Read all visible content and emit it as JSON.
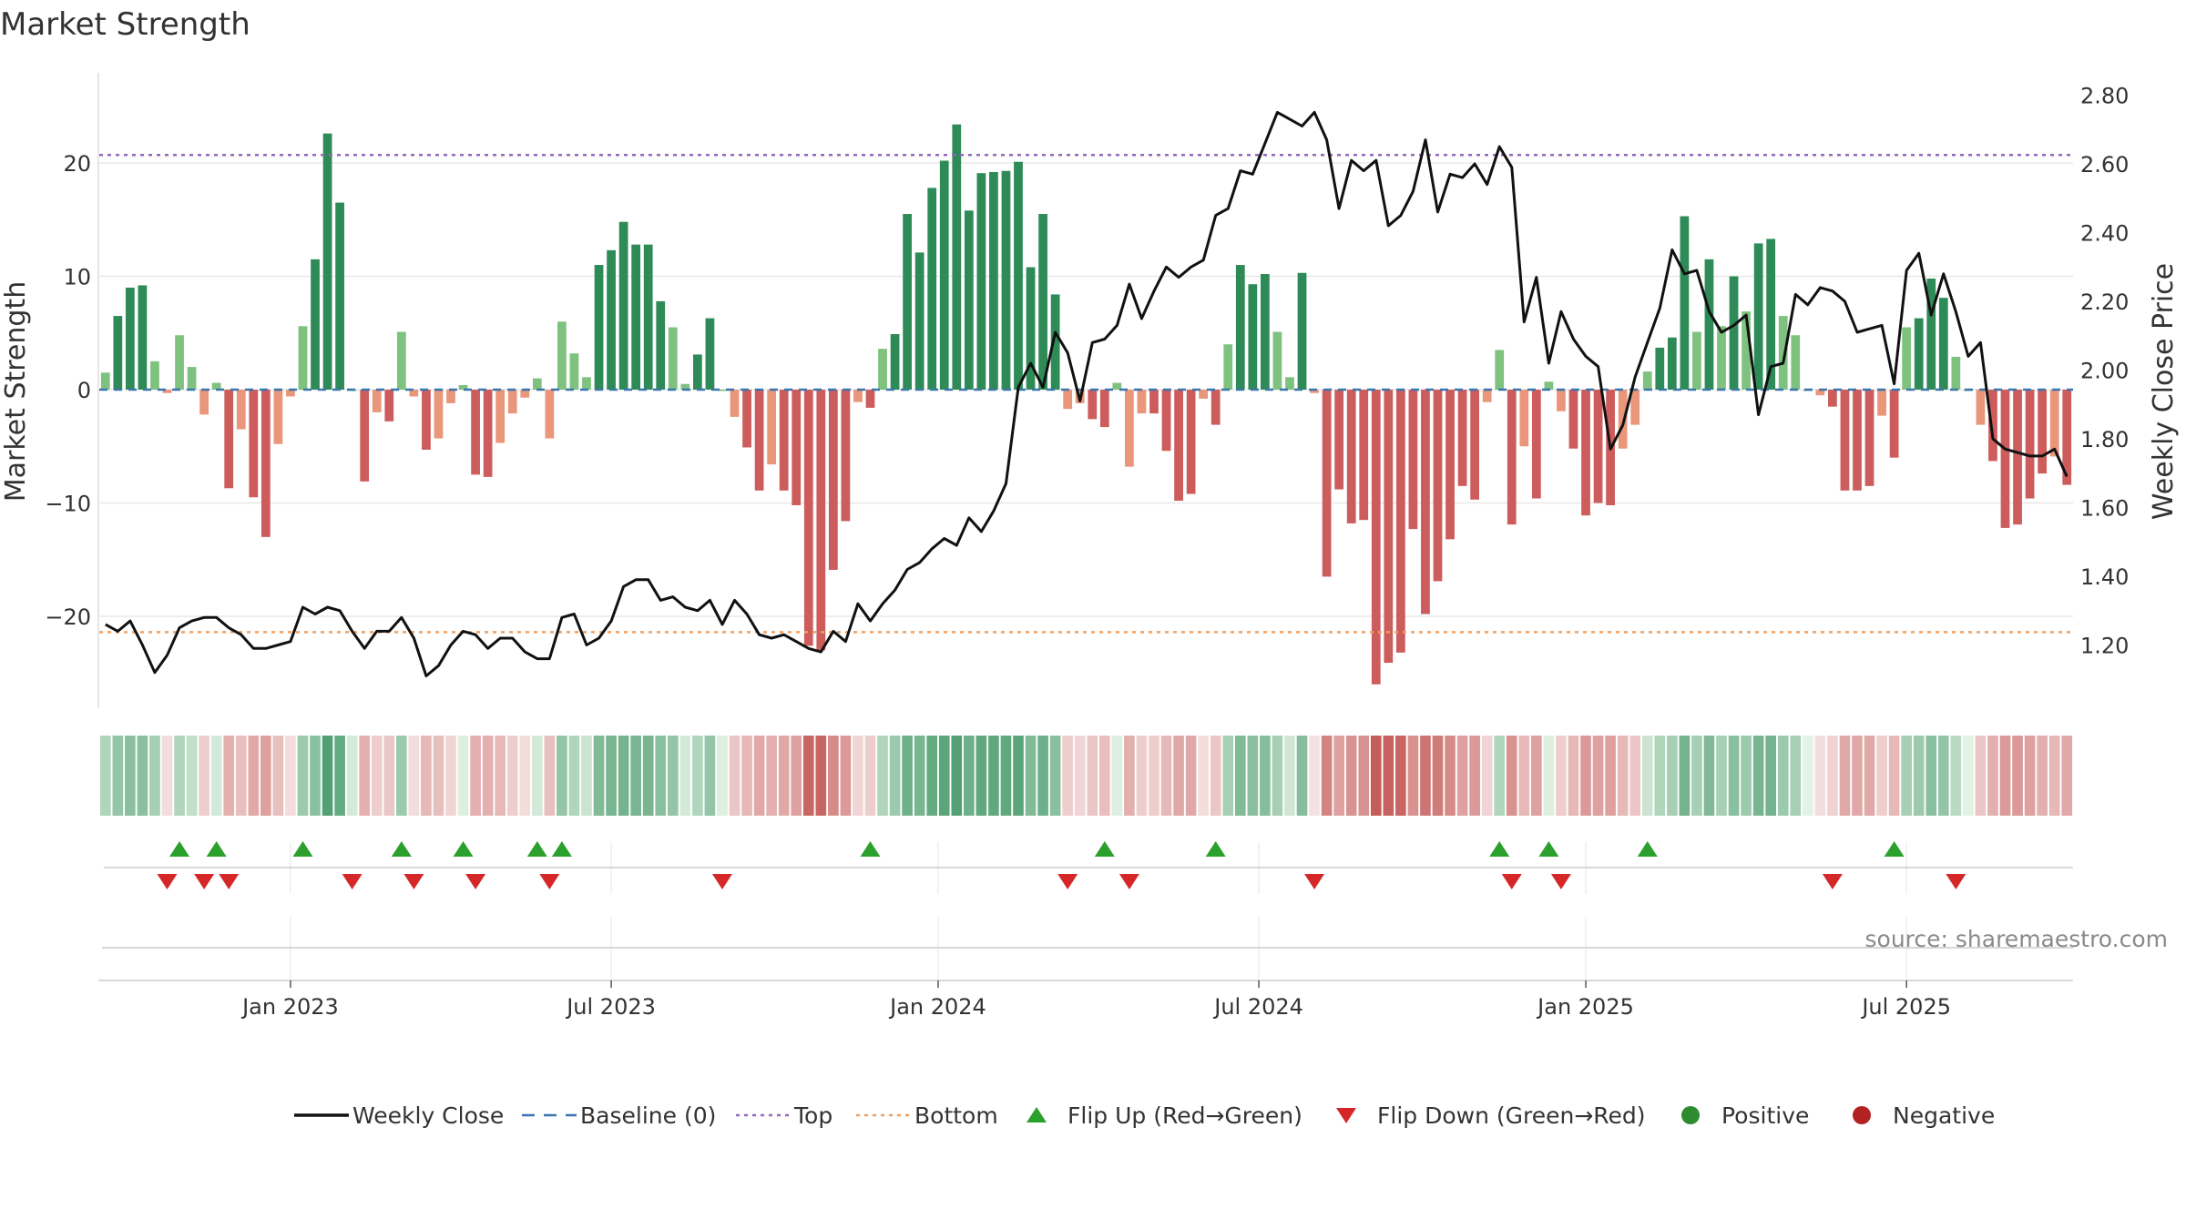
{
  "chart_data": {
    "type": "bar",
    "title": "Market Strength",
    "ylabel": "Market Strength",
    "y2label": "Weekly Close Price",
    "source": "source: sharemaestro.com",
    "ylim": [
      -28,
      28
    ],
    "y2lim": [
      1.0,
      2.85
    ],
    "yticks": [
      -20,
      -10,
      0,
      10,
      20
    ],
    "yticklabels": [
      "−20",
      "−10",
      "0",
      "10",
      "20"
    ],
    "y2ticks": [
      1.2,
      1.4,
      1.6,
      1.8,
      2.0,
      2.2,
      2.4,
      2.6,
      2.8
    ],
    "y2ticklabels": [
      "1.20",
      "1.40",
      "1.60",
      "1.80",
      "2.00",
      "2.20",
      "2.40",
      "2.60",
      "2.80"
    ],
    "top_level": 20.7,
    "bottom_level": -21.4,
    "x_range": [
      0,
      162
    ],
    "xticks": [
      {
        "index": 15.5,
        "label": "Jan 2023"
      },
      {
        "index": 41.5,
        "label": "Jul 2023"
      },
      {
        "index": 68,
        "label": "Jan 2024"
      },
      {
        "index": 94,
        "label": "Jul 2024"
      },
      {
        "index": 120.5,
        "label": "Jan 2025"
      },
      {
        "index": 146.5,
        "label": "Jul 2025"
      }
    ],
    "strength": [
      1.5,
      6.5,
      9,
      9.2,
      2.5,
      -0.3,
      4.8,
      2,
      -2.2,
      0.6,
      -8.7,
      -3.5,
      -9.5,
      -13,
      -4.8,
      -0.6,
      5.6,
      11.5,
      22.6,
      16.5,
      0,
      -8.1,
      -2,
      -2.8,
      5.1,
      -0.6,
      -5.3,
      -4.3,
      -1.2,
      0.4,
      -7.5,
      -7.7,
      -4.7,
      -2.1,
      -0.7,
      1,
      -4.3,
      6,
      3.2,
      1.1,
      11,
      12.3,
      14.8,
      12.8,
      12.8,
      7.8,
      5.5,
      0.5,
      3.1,
      6.3,
      0,
      -2.4,
      -5.1,
      -8.9,
      -6.6,
      -8.9,
      -10.2,
      -22.6,
      -23,
      -15.9,
      -11.6,
      -1.1,
      -1.6,
      3.6,
      4.9,
      15.5,
      12.1,
      17.8,
      20.2,
      23.4,
      15.8,
      19.1,
      19.2,
      19.3,
      20.1,
      10.8,
      15.5,
      8.4,
      -1.7,
      -1.2,
      -2.6,
      -3.3,
      0.6,
      -6.8,
      -2.1,
      -2.1,
      -5.4,
      -9.8,
      -9.2,
      -0.8,
      -3.1,
      4,
      11,
      9.3,
      10.2,
      5.1,
      1.1,
      10.3,
      -0.3,
      -16.5,
      -8.8,
      -11.8,
      -11.5,
      -26,
      -24.1,
      -23.2,
      -12.3,
      -19.8,
      -16.9,
      -13.2,
      -8.5,
      -9.7,
      -1.1,
      3.5,
      -11.9,
      -5,
      -9.6,
      0.7,
      -1.9,
      -5.2,
      -11.1,
      -10,
      -10.2,
      -5.2,
      -3.1,
      1.6,
      3.7,
      4.6,
      15.3,
      5.1,
      11.5,
      5.6,
      10,
      6.9,
      12.9,
      13.3,
      6.5,
      4.8,
      0,
      -0.5,
      -1.5,
      -8.9,
      -8.9,
      -8.5,
      -2.3,
      -6,
      5.5,
      6.3,
      9.8,
      8.1,
      2.9,
      0,
      -3.1,
      -6.3,
      -12.2,
      -11.9,
      -9.6,
      -7.4,
      -5.9,
      -8.4
    ],
    "close": [
      1.26,
      1.24,
      1.27,
      1.2,
      1.12,
      1.17,
      1.25,
      1.27,
      1.28,
      1.28,
      1.25,
      1.23,
      1.19,
      1.19,
      1.2,
      1.21,
      1.31,
      1.29,
      1.31,
      1.3,
      1.24,
      1.19,
      1.24,
      1.24,
      1.28,
      1.22,
      1.11,
      1.14,
      1.2,
      1.24,
      1.23,
      1.19,
      1.22,
      1.22,
      1.18,
      1.16,
      1.16,
      1.28,
      1.29,
      1.2,
      1.22,
      1.27,
      1.37,
      1.39,
      1.39,
      1.33,
      1.34,
      1.31,
      1.3,
      1.33,
      1.26,
      1.33,
      1.29,
      1.23,
      1.22,
      1.23,
      1.21,
      1.19,
      1.18,
      1.24,
      1.21,
      1.32,
      1.27,
      1.32,
      1.36,
      1.42,
      1.44,
      1.48,
      1.51,
      1.49,
      1.57,
      1.53,
      1.59,
      1.67,
      1.95,
      2.02,
      1.95,
      2.11,
      2.05,
      1.91,
      2.08,
      2.09,
      2.13,
      2.25,
      2.15,
      2.23,
      2.3,
      2.27,
      2.3,
      2.32,
      2.45,
      2.47,
      2.58,
      2.57,
      2.66,
      2.75,
      2.73,
      2.71,
      2.75,
      2.67,
      2.47,
      2.61,
      2.58,
      2.61,
      2.42,
      2.45,
      2.52,
      2.67,
      2.46,
      2.57,
      2.56,
      2.6,
      2.54,
      2.65,
      2.59,
      2.14,
      2.27,
      2.02,
      2.17,
      2.09,
      2.04,
      2.01,
      1.77,
      1.84,
      1.98,
      2.08,
      2.18,
      2.35,
      2.28,
      2.29,
      2.17,
      2.11,
      2.13,
      2.16,
      1.87,
      2.01,
      2.02,
      2.22,
      2.19,
      2.24,
      2.23,
      2.2,
      2.11,
      2.12,
      2.13,
      1.96,
      2.29,
      2.34,
      2.16,
      2.28,
      2.17,
      2.04,
      2.08,
      1.8,
      1.77,
      1.76,
      1.75,
      1.75,
      1.77,
      1.69
    ],
    "heatmap": [
      0.3,
      0.45,
      0.5,
      0.5,
      0.35,
      -0.05,
      0.3,
      0.2,
      -0.15,
      0.1,
      -0.35,
      -0.25,
      -0.4,
      -0.45,
      -0.25,
      -0.05,
      0.4,
      0.5,
      0.8,
      0.7,
      0.1,
      -0.35,
      -0.15,
      -0.2,
      0.4,
      -0.05,
      -0.3,
      -0.25,
      -0.1,
      0.05,
      -0.35,
      -0.35,
      -0.3,
      -0.15,
      -0.05,
      0.1,
      -0.25,
      0.45,
      0.3,
      0.15,
      0.55,
      0.6,
      0.62,
      0.6,
      0.6,
      0.5,
      0.45,
      0.1,
      0.3,
      0.45,
      0.05,
      -0.2,
      -0.3,
      -0.4,
      -0.35,
      -0.4,
      -0.45,
      -0.85,
      -0.85,
      -0.6,
      -0.5,
      -0.1,
      -0.15,
      0.3,
      0.4,
      0.65,
      0.6,
      0.7,
      0.75,
      0.8,
      0.65,
      0.72,
      0.72,
      0.72,
      0.75,
      0.55,
      0.65,
      0.5,
      -0.15,
      -0.1,
      -0.2,
      -0.25,
      0.05,
      -0.35,
      -0.15,
      -0.15,
      -0.3,
      -0.4,
      -0.4,
      -0.05,
      -0.2,
      0.35,
      0.55,
      0.5,
      0.52,
      0.35,
      0.12,
      0.52,
      -0.02,
      -0.65,
      -0.45,
      -0.55,
      -0.55,
      -0.92,
      -0.88,
      -0.85,
      -0.55,
      -0.75,
      -0.7,
      -0.6,
      -0.45,
      -0.5,
      -0.1,
      0.3,
      -0.55,
      -0.3,
      -0.45,
      0.05,
      -0.15,
      -0.3,
      -0.5,
      -0.45,
      -0.45,
      -0.3,
      -0.2,
      0.15,
      0.3,
      0.35,
      0.62,
      0.35,
      0.55,
      0.35,
      0.5,
      0.4,
      0.6,
      0.62,
      0.4,
      0.35,
      0.02,
      -0.05,
      -0.12,
      -0.4,
      -0.4,
      -0.4,
      -0.15,
      -0.3,
      0.35,
      0.4,
      0.5,
      0.45,
      0.25,
      0.02,
      -0.2,
      -0.35,
      -0.5,
      -0.5,
      -0.45,
      -0.35,
      -0.3,
      -0.4
    ],
    "flips_up": [
      6,
      9,
      16,
      24,
      29,
      35,
      37,
      62,
      81,
      90,
      113,
      117,
      125,
      145
    ],
    "flips_down": [
      5,
      8,
      10,
      20,
      25,
      30,
      36,
      50,
      78,
      83,
      98,
      114,
      118,
      140,
      150
    ],
    "legend": [
      {
        "label": "Weekly Close",
        "kind": "line",
        "color": "#111111"
      },
      {
        "label": "Baseline (0)",
        "kind": "dash",
        "color": "#3b75af"
      },
      {
        "label": "Top",
        "kind": "dotted",
        "color": "#9467bd"
      },
      {
        "label": "Bottom",
        "kind": "dotted",
        "color": "#f0a060"
      },
      {
        "label": "Flip Up (Red→Green)",
        "kind": "tri-up",
        "color": "#2ca02c"
      },
      {
        "label": "Flip Down (Green→Red)",
        "kind": "tri-down",
        "color": "#d62728"
      },
      {
        "label": "Positive",
        "kind": "dot",
        "color": "#2e8b2e"
      },
      {
        "label": "Negative",
        "kind": "dot",
        "color": "#b22222"
      }
    ],
    "colors": {
      "green_dark": "#2e8b57",
      "green_light": "#7fc27f",
      "red_dark": "#cd5c5c",
      "red_light": "#e9967a",
      "price_line": "#111111",
      "baseline": "#3b75af",
      "top": "#9467bd",
      "bottom": "#f0a060",
      "flip_up": "#2ca02c",
      "flip_down": "#d62728",
      "grid": "#e8e8e8"
    }
  }
}
